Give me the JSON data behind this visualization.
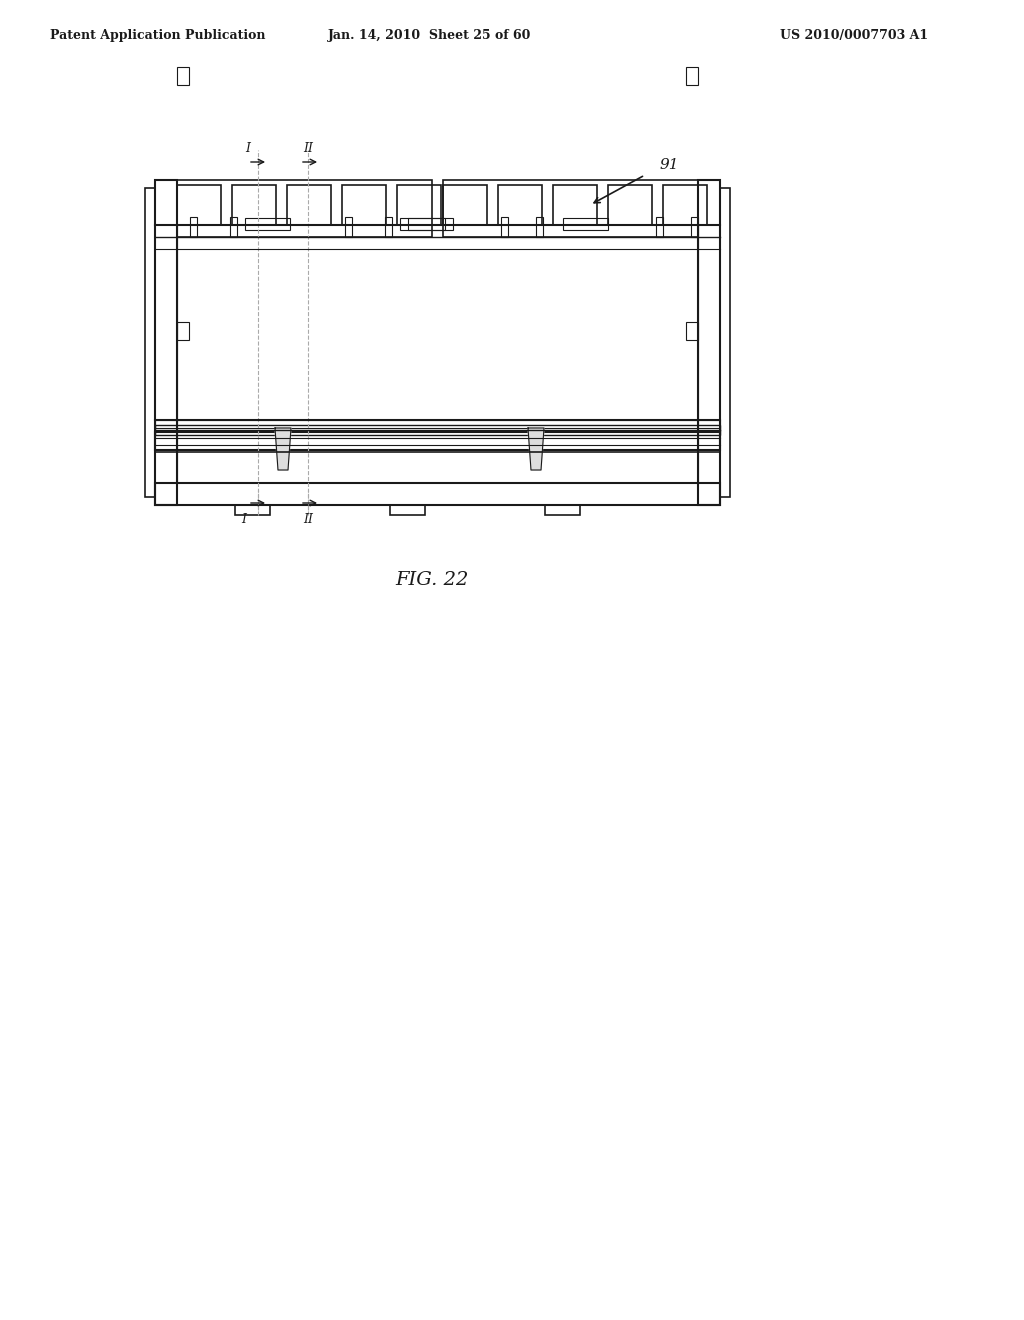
{
  "bg_color": "#ffffff",
  "line_color": "#1a1a1a",
  "light_line_color": "#555555",
  "dash_color": "#aaaaaa",
  "header_left": "Patent Application Publication",
  "header_mid": "Jan. 14, 2010  Sheet 25 of 60",
  "header_right": "US 2010/0007703 A1",
  "fig_label": "FIG. 22",
  "ref_num": "91",
  "section_I": "I",
  "section_II": "II"
}
